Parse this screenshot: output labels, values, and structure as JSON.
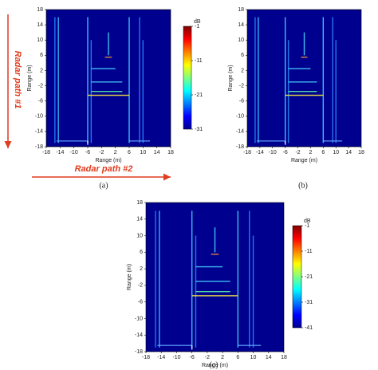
{
  "chart_data": [
    {
      "type": "heatmap",
      "caption": "(a)",
      "xlabel": "Range (m)",
      "ylabel": "Range (m)",
      "xlim": [
        -18,
        18
      ],
      "xticks": [
        -18,
        -14,
        -10,
        -6,
        -2,
        2,
        6,
        10,
        14,
        18
      ],
      "ylim": [
        -18,
        18
      ],
      "yticks": [
        -18,
        -14,
        -10,
        -6,
        -2,
        2,
        6,
        10,
        14,
        18
      ],
      "colorbar": {
        "label": "dB",
        "lim": [
          -31,
          -1
        ],
        "ticks": [
          -1,
          -11,
          -21,
          -31
        ]
      },
      "annotations": [
        "Radar path #1",
        "Radar path #2"
      ]
    },
    {
      "type": "heatmap",
      "caption": "(b)",
      "xlabel": "Range (m)",
      "ylabel": "Range (m)",
      "xlim": [
        -18,
        18
      ],
      "xticks": [
        -18,
        -14,
        -10,
        -6,
        -2,
        2,
        6,
        10,
        14,
        18
      ],
      "ylim": [
        -18,
        18
      ],
      "yticks": [
        -18,
        -14,
        -10,
        -6,
        -2,
        2,
        6,
        10,
        14,
        18
      ]
    },
    {
      "type": "heatmap",
      "caption": "(c)",
      "xlabel": "Range (m)",
      "ylabel": "Range (m)",
      "xlim": [
        -18,
        18
      ],
      "xticks": [
        -18,
        -14,
        -10,
        -6,
        -2,
        2,
        6,
        10,
        14,
        18
      ],
      "ylim": [
        -18,
        18
      ],
      "yticks": [
        -18,
        -14,
        -10,
        -6,
        -2,
        2,
        6,
        10,
        14,
        18
      ],
      "colorbar": {
        "label": "dB",
        "lim": [
          -41,
          -1
        ],
        "ticks": [
          -1,
          -11,
          -21,
          -31,
          -41
        ]
      }
    }
  ]
}
